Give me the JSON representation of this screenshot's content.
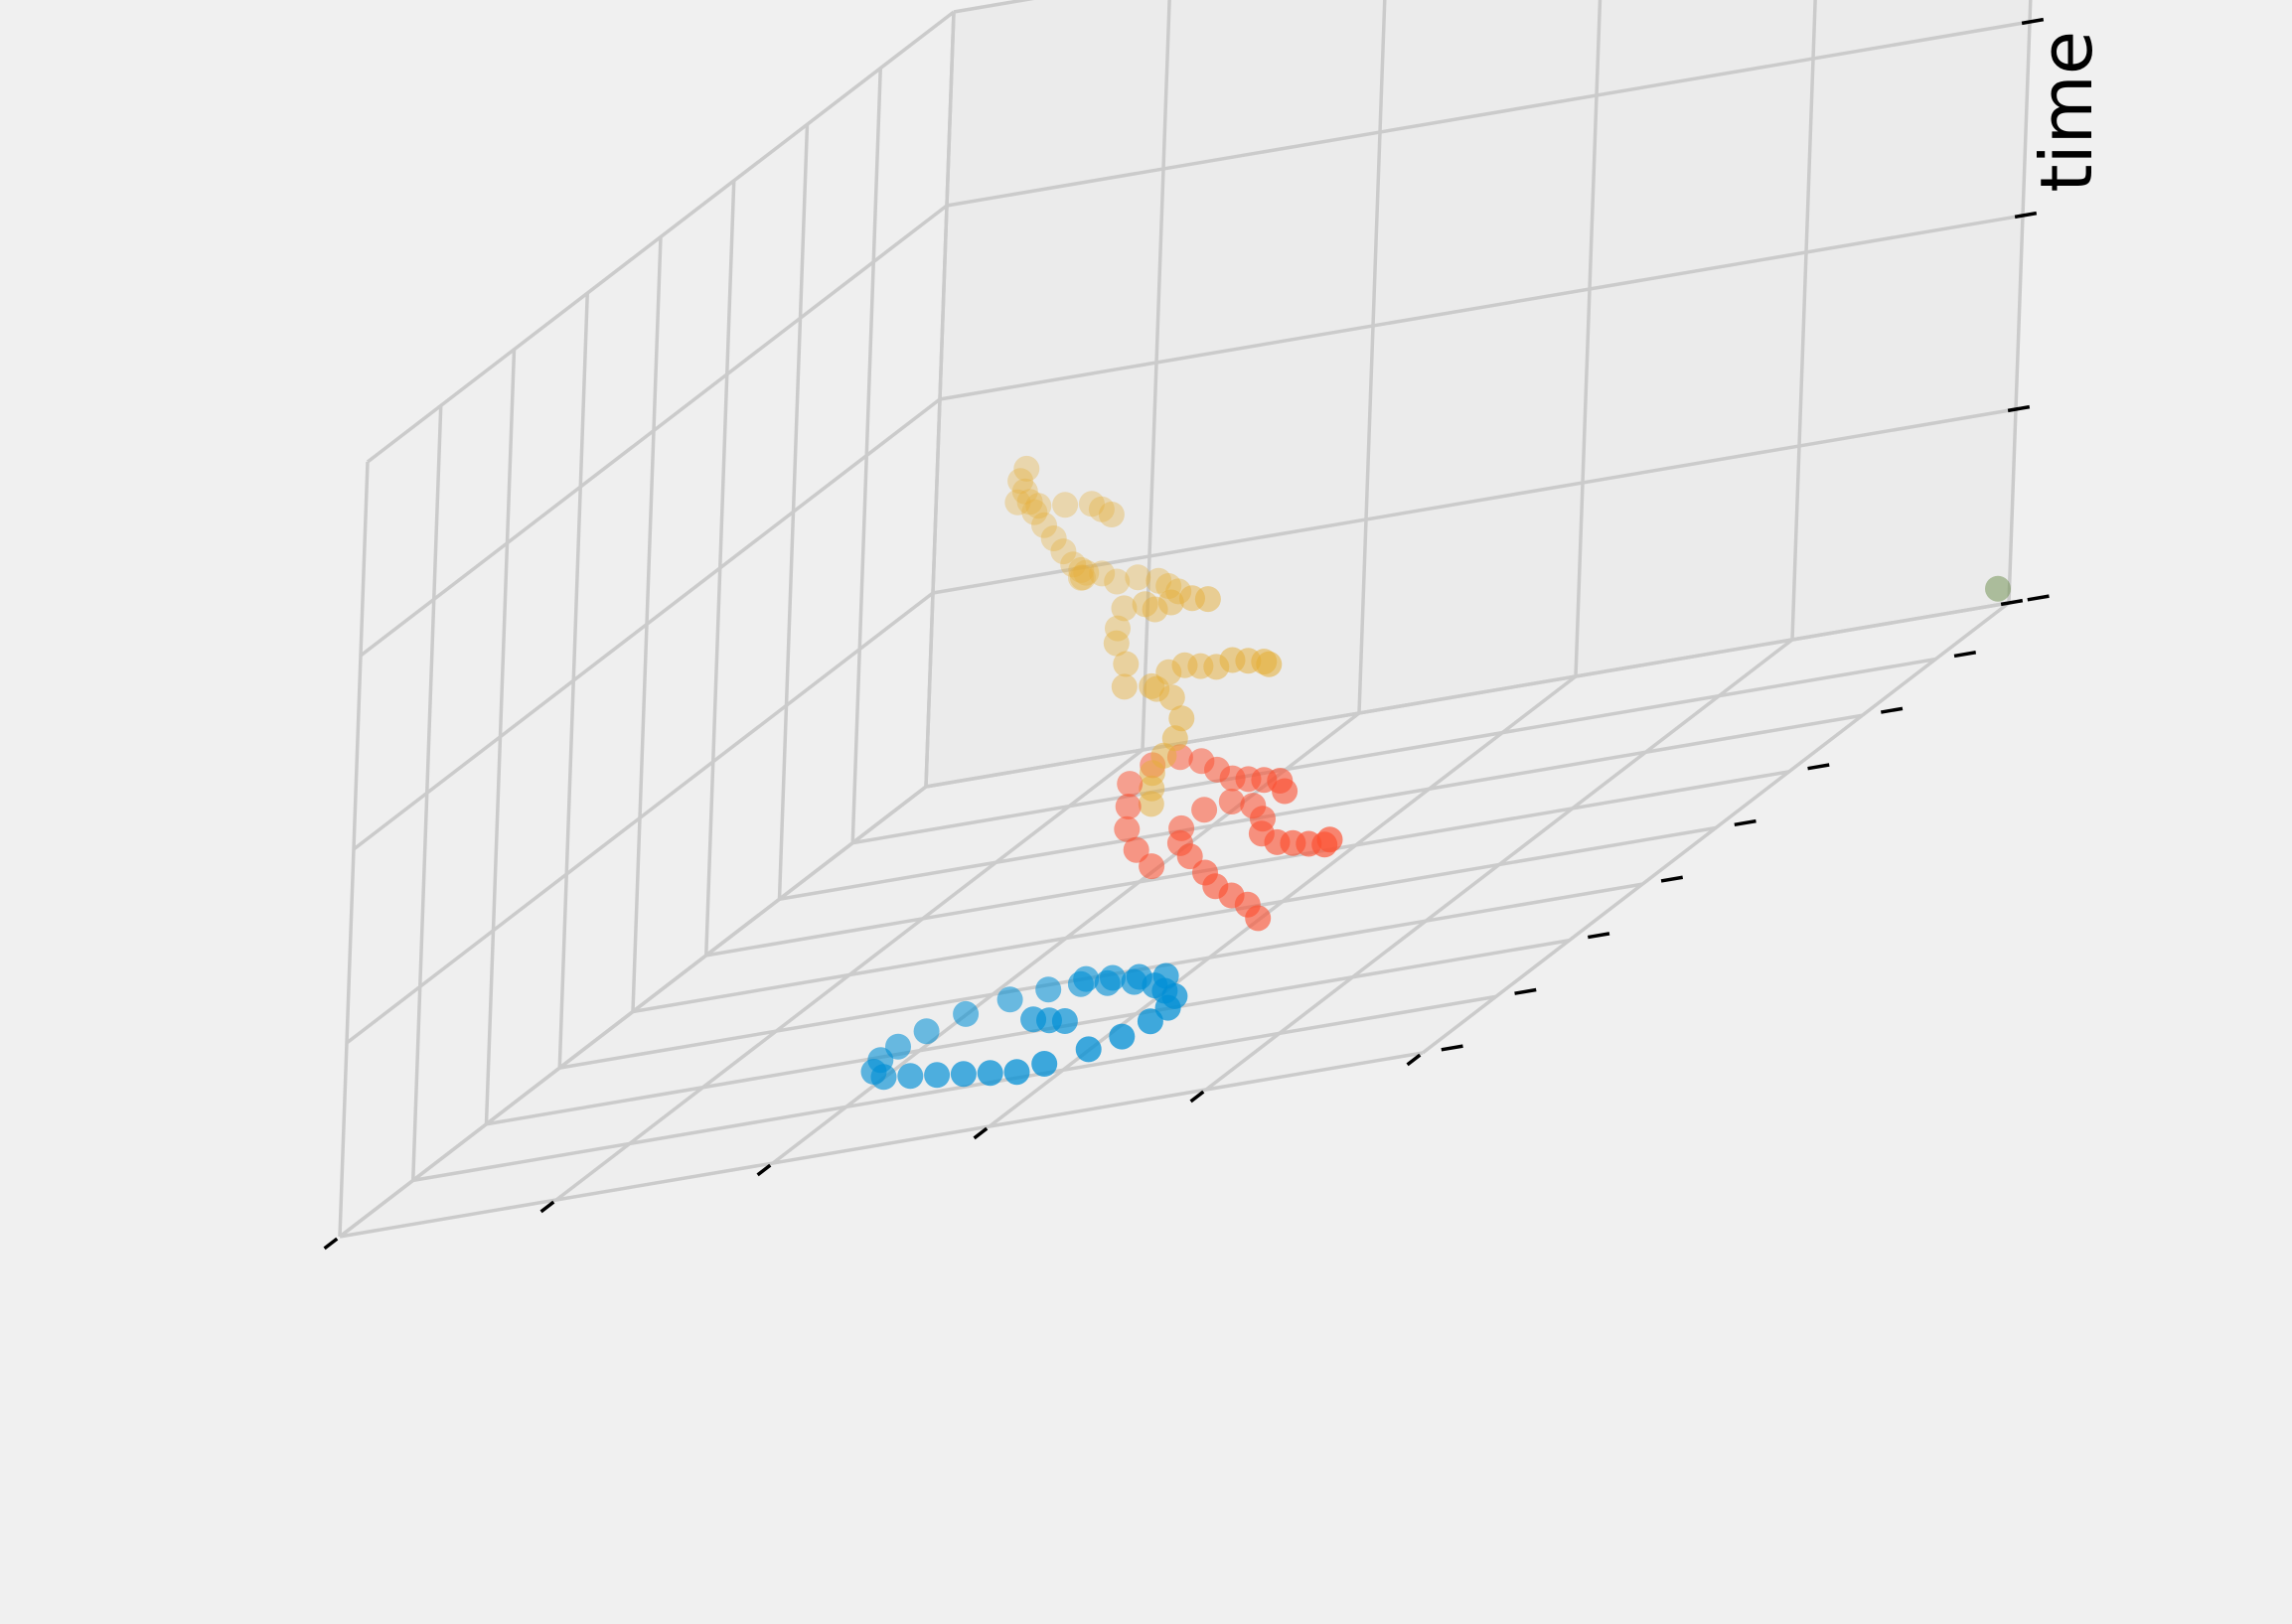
{
  "figure": {
    "background": "#f0f0f0",
    "pane_color": "#ebebeb",
    "grid_color": "#cbcbcb",
    "tick_color": "#000000"
  },
  "chart_data": {
    "type": "scatter3d",
    "title": "",
    "xlabel": "",
    "ylabel": "",
    "zlabel": "time",
    "tick_labels_visible": false,
    "grid": true,
    "xlim": [
      0,
      1
    ],
    "ylim": [
      0,
      1
    ],
    "zlim": [
      0,
      1
    ],
    "series": [
      {
        "color": "#008fd5",
        "points": [
          [
            0.44,
            0.12,
            0.01
          ],
          [
            0.47,
            0.13,
            0.01
          ],
          [
            0.5,
            0.14,
            0.01
          ],
          [
            0.53,
            0.15,
            0.01
          ],
          [
            0.56,
            0.16,
            0.01
          ],
          [
            0.59,
            0.17,
            0.01
          ],
          [
            0.61,
            0.19,
            0.01
          ],
          [
            0.62,
            0.22,
            0.01
          ],
          [
            0.62,
            0.25,
            0.01
          ],
          [
            0.61,
            0.28,
            0.01
          ],
          [
            0.59,
            0.31,
            0.01
          ],
          [
            0.56,
            0.33,
            0.01
          ],
          [
            0.53,
            0.34,
            0.01
          ],
          [
            0.5,
            0.34,
            0.01
          ],
          [
            0.47,
            0.33,
            0.01
          ],
          [
            0.44,
            0.32,
            0.01
          ],
          [
            0.41,
            0.3,
            0.01
          ],
          [
            0.39,
            0.28,
            0.01
          ],
          [
            0.37,
            0.26,
            0.01
          ],
          [
            0.36,
            0.23,
            0.01
          ],
          [
            0.36,
            0.2,
            0.01
          ],
          [
            0.37,
            0.17,
            0.01
          ],
          [
            0.39,
            0.15,
            0.01
          ],
          [
            0.42,
            0.13,
            0.01
          ],
          [
            0.45,
            0.22,
            0.02
          ],
          [
            0.47,
            0.23,
            0.02
          ],
          [
            0.49,
            0.24,
            0.02
          ],
          [
            0.4,
            0.3,
            0.02
          ],
          [
            0.43,
            0.31,
            0.02
          ],
          [
            0.46,
            0.32,
            0.02
          ],
          [
            0.49,
            0.33,
            0.02
          ]
        ]
      },
      {
        "color": "#fc4f30",
        "points": [
          [
            0.38,
            0.42,
            0.02
          ],
          [
            0.39,
            0.42,
            0.04
          ],
          [
            0.4,
            0.41,
            0.06
          ],
          [
            0.41,
            0.4,
            0.08
          ],
          [
            0.42,
            0.4,
            0.1
          ],
          [
            0.44,
            0.41,
            0.12
          ],
          [
            0.46,
            0.43,
            0.13
          ],
          [
            0.47,
            0.45,
            0.14
          ],
          [
            0.46,
            0.47,
            0.15
          ],
          [
            0.44,
            0.48,
            0.15
          ],
          [
            0.42,
            0.48,
            0.14
          ],
          [
            0.4,
            0.46,
            0.13
          ],
          [
            0.39,
            0.44,
            0.12
          ],
          [
            0.37,
            0.43,
            0.11
          ],
          [
            0.35,
            0.42,
            0.11
          ],
          [
            0.33,
            0.41,
            0.11
          ],
          [
            0.31,
            0.4,
            0.11
          ],
          [
            0.3,
            0.39,
            0.12
          ],
          [
            0.47,
            0.4,
            0.12
          ],
          [
            0.49,
            0.41,
            0.14
          ],
          [
            0.51,
            0.43,
            0.16
          ],
          [
            0.52,
            0.45,
            0.18
          ],
          [
            0.53,
            0.47,
            0.2
          ],
          [
            0.52,
            0.49,
            0.21
          ],
          [
            0.5,
            0.5,
            0.21
          ],
          [
            0.48,
            0.5,
            0.2
          ],
          [
            0.46,
            0.49,
            0.19
          ],
          [
            0.44,
            0.48,
            0.18
          ],
          [
            0.42,
            0.47,
            0.18
          ],
          [
            0.4,
            0.46,
            0.18
          ],
          [
            0.38,
            0.45,
            0.18
          ],
          [
            0.37,
            0.44,
            0.17
          ]
        ]
      },
      {
        "color": "#e5ae38",
        "points": [
          [
            0.52,
            0.49,
            0.16
          ],
          [
            0.52,
            0.49,
            0.18
          ],
          [
            0.52,
            0.49,
            0.2
          ],
          [
            0.51,
            0.49,
            0.22
          ],
          [
            0.5,
            0.49,
            0.24
          ],
          [
            0.5,
            0.5,
            0.26
          ],
          [
            0.52,
            0.52,
            0.28
          ],
          [
            0.54,
            0.53,
            0.29
          ],
          [
            0.55,
            0.54,
            0.29
          ],
          [
            0.54,
            0.55,
            0.3
          ],
          [
            0.52,
            0.54,
            0.31
          ],
          [
            0.5,
            0.53,
            0.31
          ],
          [
            0.48,
            0.52,
            0.31
          ],
          [
            0.46,
            0.51,
            0.32
          ],
          [
            0.44,
            0.5,
            0.32
          ],
          [
            0.42,
            0.49,
            0.32
          ],
          [
            0.41,
            0.48,
            0.32
          ],
          [
            0.57,
            0.53,
            0.3
          ],
          [
            0.58,
            0.55,
            0.32
          ],
          [
            0.6,
            0.57,
            0.34
          ],
          [
            0.61,
            0.59,
            0.35
          ],
          [
            0.61,
            0.6,
            0.37
          ],
          [
            0.58,
            0.58,
            0.38
          ],
          [
            0.56,
            0.56,
            0.38
          ],
          [
            0.54,
            0.55,
            0.39
          ],
          [
            0.51,
            0.53,
            0.4
          ],
          [
            0.49,
            0.52,
            0.4
          ],
          [
            0.56,
            0.6,
            0.38
          ],
          [
            0.58,
            0.62,
            0.38
          ],
          [
            0.6,
            0.64,
            0.38
          ],
          [
            0.63,
            0.66,
            0.38
          ],
          [
            0.66,
            0.68,
            0.37
          ],
          [
            0.69,
            0.71,
            0.37
          ],
          [
            0.71,
            0.72,
            0.37
          ],
          [
            0.72,
            0.73,
            0.37
          ],
          [
            0.72,
            0.73,
            0.36
          ],
          [
            0.66,
            0.62,
            0.41
          ],
          [
            0.68,
            0.64,
            0.42
          ],
          [
            0.7,
            0.66,
            0.43
          ],
          [
            0.72,
            0.68,
            0.44
          ],
          [
            0.74,
            0.7,
            0.45
          ],
          [
            0.76,
            0.72,
            0.46
          ],
          [
            0.77,
            0.73,
            0.47
          ],
          [
            0.78,
            0.74,
            0.48
          ],
          [
            0.79,
            0.75,
            0.49
          ],
          [
            0.79,
            0.76,
            0.5
          ],
          [
            0.63,
            0.61,
            0.49
          ],
          [
            0.65,
            0.63,
            0.49
          ],
          [
            0.67,
            0.65,
            0.49
          ],
          [
            0.7,
            0.66,
            0.49
          ],
          [
            0.73,
            0.67,
            0.49
          ],
          [
            0.76,
            0.69,
            0.49
          ]
        ]
      },
      {
        "color": "#6d904f",
        "points": [
          [
            0.0,
            0.98,
            0.03
          ]
        ]
      }
    ],
    "z_ticks": [
      0.0,
      0.25,
      0.5,
      0.75,
      1.0
    ],
    "x_ticks": [
      0.0,
      0.2,
      0.4,
      0.6,
      0.8,
      1.0
    ],
    "y_ticks": [
      0.0,
      0.125,
      0.25,
      0.375,
      0.5,
      0.625,
      0.75,
      0.875,
      1.0
    ]
  }
}
